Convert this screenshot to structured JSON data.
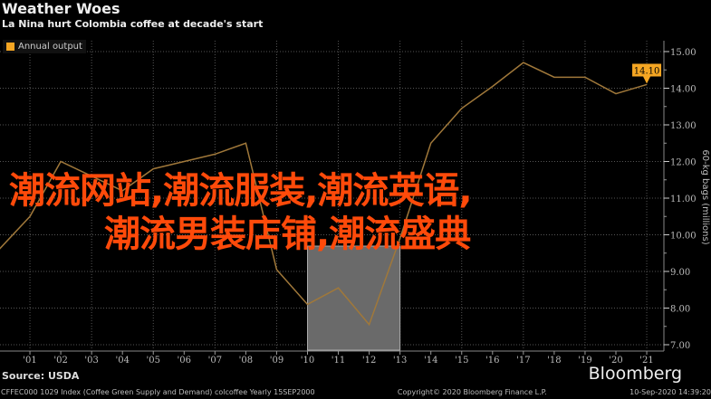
{
  "header": {
    "title": "Weather Woes",
    "subtitle": "La Nina hurt Colombia coffee at decade's start"
  },
  "legend": {
    "label": "Annual output",
    "color": "#f5a623"
  },
  "chart_data": {
    "type": "line",
    "title": "Weather Woes",
    "subtitle": "La Nina hurt Colombia coffee at decade's start",
    "ylabel": "60-kg bags (millions)",
    "ylim": [
      7,
      15.5
    ],
    "xlim": [
      2000,
      2021.5
    ],
    "grid": true,
    "legend_position": "top-left",
    "x_tick_labels": [
      "'01",
      "'02",
      "'03",
      "'04",
      "'05",
      "'06",
      "'07",
      "'08",
      "'09",
      "'10",
      "'11",
      "'12",
      "'13",
      "'14",
      "'15",
      "'16",
      "'17",
      "'18",
      "'19",
      "'20",
      "'21"
    ],
    "y_tick_labels": [
      "7.00",
      "8.00",
      "9.00",
      "10.00",
      "11.00",
      "12.00",
      "13.00",
      "14.00",
      "15.00"
    ],
    "series": [
      {
        "name": "Annual output",
        "color": "#a0783a",
        "x": [
          2000,
          2001,
          2002,
          2003,
          2004,
          2005,
          2006,
          2007,
          2008,
          2009,
          2010,
          2011,
          2012,
          2013,
          2014,
          2015,
          2016,
          2017,
          2018,
          2019,
          2020,
          2021
        ],
        "values": [
          9.6,
          10.5,
          12.0,
          11.6,
          11.2,
          11.8,
          12.0,
          12.2,
          12.5,
          9.05,
          8.1,
          8.55,
          7.55,
          9.9,
          12.5,
          13.45,
          14.05,
          14.7,
          14.3,
          14.3,
          13.85,
          14.1
        ]
      }
    ],
    "highlight_range": [
      2010,
      2013
    ],
    "last_value_label": "14.10"
  },
  "overlay": {
    "line1": "潮流网站,潮流服装,潮流英语,",
    "line2": "潮流男装店铺,潮流盛典"
  },
  "footer": {
    "source": "Source: USDA",
    "brand": "Bloomberg",
    "index_info": "CFFEC000 1029 Index (Coffee Green Supply and Demand) colcoffee  Yearly 15SEP2000",
    "copyright": "Copyright© 2020 Bloomberg Finance L.P.",
    "timestamp": "10-Sep-2020 14:39:20"
  }
}
